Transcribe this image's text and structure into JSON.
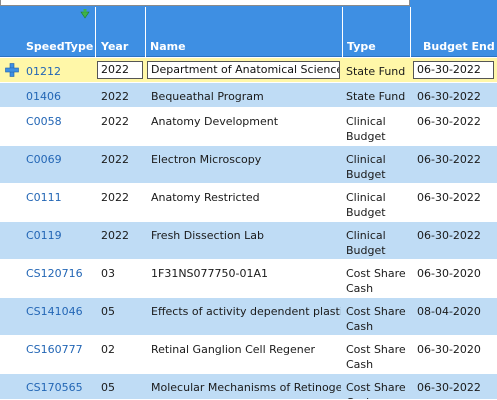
{
  "columns": {
    "speedtype": "SpeedType",
    "year": "Year",
    "name": "Name",
    "type": "Type",
    "budget_end": "Budget End"
  },
  "edit_row": {
    "speedtype": "01212",
    "year": "2022",
    "name": "Department of Anatomical Sciences a",
    "type": "State Fund",
    "budget_end": "06-30-2022"
  },
  "rows": [
    {
      "speedtype": "01406",
      "year": "2022",
      "name": "Bequeathal Program",
      "type": "State Fund",
      "budget_end": "06-30-2022"
    },
    {
      "speedtype": "C0058",
      "year": "2022",
      "name": "Anatomy Development",
      "type": "Clinical Budget",
      "budget_end": "06-30-2022"
    },
    {
      "speedtype": "C0069",
      "year": "2022",
      "name": "Electron Microscopy",
      "type": "Clinical Budget",
      "budget_end": "06-30-2022"
    },
    {
      "speedtype": "C0111",
      "year": "2022",
      "name": "Anatomy Restricted",
      "type": "Clinical Budget",
      "budget_end": "06-30-2022"
    },
    {
      "speedtype": "C0119",
      "year": "2022",
      "name": "Fresh Dissection Lab",
      "type": "Clinical Budget",
      "budget_end": "06-30-2022"
    },
    {
      "speedtype": "CS120716",
      "year": "03",
      "name": "1F31NS077750-01A1",
      "type": "Cost Share Cash",
      "budget_end": "06-30-2020"
    },
    {
      "speedtype": "CS141046",
      "year": "05",
      "name": "Effects of activity dependent plasticit",
      "type": "Cost Share Cash",
      "budget_end": "08-04-2020"
    },
    {
      "speedtype": "CS160777",
      "year": "02",
      "name": "Retinal Ganglion Cell Regener",
      "type": "Cost Share Cash",
      "budget_end": "06-30-2020"
    },
    {
      "speedtype": "CS170565",
      "year": "05",
      "name": "Molecular Mechanisms of Retinogeni",
      "type": "Cost Share Cash",
      "budget_end": "06-30-2022"
    }
  ],
  "colors": {
    "header": "#3e8fe3",
    "alt_row": "#bfdcf5",
    "selected_row": "#fff7a8",
    "link": "#2366b5"
  },
  "icons": {
    "sort": "sort-down-arrow-icon",
    "add": "add-plus-icon"
  }
}
